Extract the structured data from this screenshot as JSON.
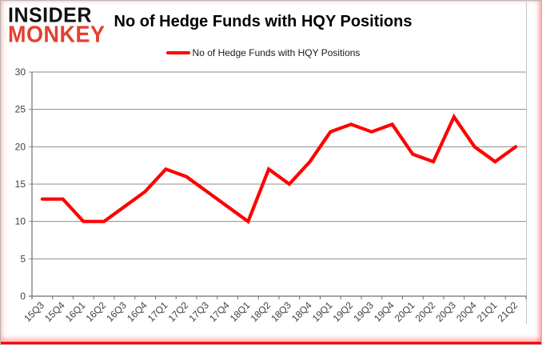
{
  "logo": {
    "line1": "INSIDER",
    "line2": "MONKEY"
  },
  "header": {
    "title": "No of Hedge Funds with HQY Positions"
  },
  "legend": {
    "label": "No of Hedge Funds with HQY Positions"
  },
  "colors": {
    "line": "#ff0000",
    "grid": "#8c8c8c",
    "axis": "#6e6e6e",
    "tick_label": "#3f3f3f",
    "logo_red": "#e2402f",
    "border_glow": "#ff0000"
  },
  "chart_data": {
    "type": "line",
    "title": "No of Hedge Funds with HQY Positions",
    "categories": [
      "15Q3",
      "15Q4",
      "16Q1",
      "16Q2",
      "16Q3",
      "16Q4",
      "17Q1",
      "17Q2",
      "17Q3",
      "17Q4",
      "18Q1",
      "18Q2",
      "18Q3",
      "18Q4",
      "19Q1",
      "19Q2",
      "19Q3",
      "19Q4",
      "20Q1",
      "20Q2",
      "20Q3",
      "20Q4",
      "21Q1",
      "21Q2"
    ],
    "series": [
      {
        "name": "No of Hedge Funds with HQY Positions",
        "color": "#ff0000",
        "values": [
          13,
          13,
          10,
          10,
          12,
          14,
          17,
          16,
          14,
          12,
          10,
          17,
          15,
          18,
          22,
          23,
          22,
          23,
          19,
          18,
          24,
          20,
          18,
          20
        ]
      }
    ],
    "xlabel": "",
    "ylabel": "",
    "ylim": [
      0,
      30
    ],
    "ytick_step": 5,
    "grid": true,
    "legend_position": "top-center"
  }
}
